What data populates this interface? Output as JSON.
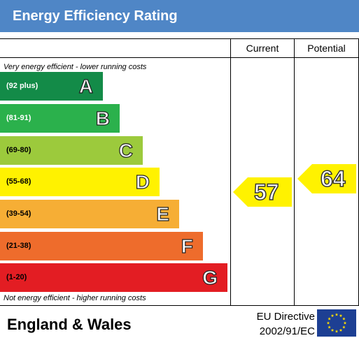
{
  "header": {
    "title": "Energy Efficiency Rating"
  },
  "columns": {
    "current": "Current",
    "potential": "Potential"
  },
  "notes": {
    "top": "Very energy efficient - lower running costs",
    "bottom": "Not energy efficient - higher running costs"
  },
  "bands": [
    {
      "letter": "A",
      "range": "(92 plus)",
      "color": "#138b48",
      "range_color": "#ffffff"
    },
    {
      "letter": "B",
      "range": "(81-91)",
      "color": "#2bb14c",
      "range_color": "#ffffff"
    },
    {
      "letter": "C",
      "range": "(69-80)",
      "color": "#9cca3c",
      "range_color": "#000000"
    },
    {
      "letter": "D",
      "range": "(55-68)",
      "color": "#fff200",
      "range_color": "#000000"
    },
    {
      "letter": "E",
      "range": "(39-54)",
      "color": "#f6ae35",
      "range_color": "#000000"
    },
    {
      "letter": "F",
      "range": "(21-38)",
      "color": "#ee6c2c",
      "range_color": "#000000"
    },
    {
      "letter": "G",
      "range": "(1-20)",
      "color": "#e31d23",
      "range_color": "#000000"
    }
  ],
  "ratings": {
    "current": {
      "value": "57",
      "band": "D",
      "color": "#fff200"
    },
    "potential": {
      "value": "64",
      "band": "D",
      "color": "#fff200"
    }
  },
  "footer": {
    "region": "England & Wales",
    "directive_line1": "EU Directive",
    "directive_line2": "2002/91/EC",
    "flag_icon": "eu-flag-icon"
  }
}
